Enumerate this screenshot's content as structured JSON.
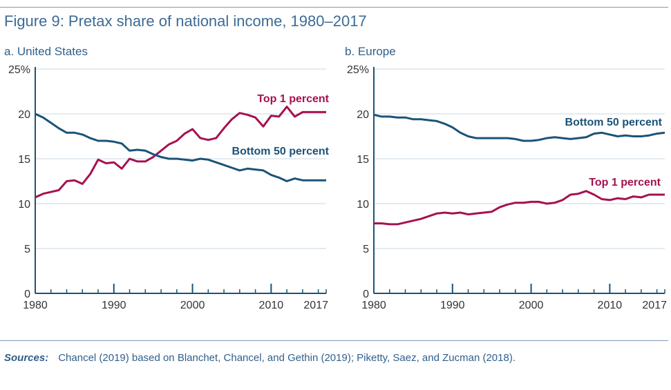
{
  "title": "Figure 9: Pretax share of national income, 1980–2017",
  "sources": {
    "label": "Sources:",
    "text": "Chancel (2019) based on Blanchet, Chancel, and Gethin (2019); Piketty, Saez, and Zucman (2018)."
  },
  "colors": {
    "top1": "#a6114f",
    "bottom50": "#1b5377",
    "axis": "#1b5377",
    "grid": "#c9d7e3"
  },
  "chart_data": [
    {
      "type": "line",
      "title": "a. United States",
      "x": [
        1980,
        1981,
        1982,
        1983,
        1984,
        1985,
        1986,
        1987,
        1988,
        1989,
        1990,
        1991,
        1992,
        1993,
        1994,
        1995,
        1996,
        1997,
        1998,
        1999,
        2000,
        2001,
        2002,
        2003,
        2004,
        2005,
        2006,
        2007,
        2008,
        2009,
        2010,
        2011,
        2012,
        2013,
        2014,
        2015,
        2016,
        2017
      ],
      "xlim": [
        1980,
        2017
      ],
      "ylim": [
        0,
        25
      ],
      "yticks": [
        0,
        5,
        10,
        15,
        20,
        25
      ],
      "ytick_labels": [
        "0",
        "5",
        "10",
        "15",
        "20",
        "25%"
      ],
      "xticks": [
        1980,
        1990,
        2000,
        2010,
        2017
      ],
      "grid": true,
      "series": [
        {
          "name": "Top 1 percent",
          "color": "#a6114f",
          "values": [
            10.7,
            11.1,
            11.3,
            11.5,
            12.5,
            12.6,
            12.2,
            13.3,
            14.9,
            14.5,
            14.6,
            13.9,
            15.0,
            14.7,
            14.7,
            15.2,
            15.9,
            16.6,
            17.0,
            17.8,
            18.3,
            17.3,
            17.1,
            17.3,
            18.4,
            19.4,
            20.1,
            19.9,
            19.6,
            18.6,
            19.8,
            19.7,
            20.8,
            19.7,
            20.2,
            20.2,
            20.2,
            20.2
          ]
        },
        {
          "name": "Bottom 50 percent",
          "color": "#1b5377",
          "values": [
            20.0,
            19.6,
            19.0,
            18.4,
            17.9,
            17.9,
            17.7,
            17.3,
            17.0,
            17.0,
            16.9,
            16.7,
            15.9,
            16.0,
            15.9,
            15.5,
            15.2,
            15.0,
            15.0,
            14.9,
            14.8,
            15.0,
            14.9,
            14.6,
            14.3,
            14.0,
            13.7,
            13.9,
            13.8,
            13.7,
            13.2,
            12.9,
            12.5,
            12.8,
            12.6,
            12.6,
            12.6,
            12.6
          ]
        }
      ]
    },
    {
      "type": "line",
      "title": "b. Europe",
      "x": [
        1980,
        1981,
        1982,
        1983,
        1984,
        1985,
        1986,
        1987,
        1988,
        1989,
        1990,
        1991,
        1992,
        1993,
        1994,
        1995,
        1996,
        1997,
        1998,
        1999,
        2000,
        2001,
        2002,
        2003,
        2004,
        2005,
        2006,
        2007,
        2008,
        2009,
        2010,
        2011,
        2012,
        2013,
        2014,
        2015,
        2016,
        2017
      ],
      "xlim": [
        1980,
        2017
      ],
      "ylim": [
        0,
        25
      ],
      "yticks": [
        0,
        5,
        10,
        15,
        20,
        25
      ],
      "ytick_labels": [
        "0",
        "5",
        "10",
        "15",
        "20",
        "25%"
      ],
      "xticks": [
        1980,
        1990,
        2000,
        2010,
        2017
      ],
      "grid": true,
      "series": [
        {
          "name": "Top 1 percent",
          "color": "#a6114f",
          "values": [
            7.8,
            7.8,
            7.7,
            7.7,
            7.9,
            8.1,
            8.3,
            8.6,
            8.9,
            9.0,
            8.9,
            9.0,
            8.8,
            8.9,
            9.0,
            9.1,
            9.6,
            9.9,
            10.1,
            10.1,
            10.2,
            10.2,
            10.0,
            10.1,
            10.4,
            11.0,
            11.1,
            11.4,
            11.0,
            10.5,
            10.4,
            10.6,
            10.5,
            10.8,
            10.7,
            11.0,
            11.0,
            11.0
          ]
        },
        {
          "name": "Bottom 50 percent",
          "color": "#1b5377",
          "values": [
            19.9,
            19.7,
            19.7,
            19.6,
            19.6,
            19.4,
            19.4,
            19.3,
            19.2,
            18.9,
            18.5,
            17.9,
            17.5,
            17.3,
            17.3,
            17.3,
            17.3,
            17.3,
            17.2,
            17.0,
            17.0,
            17.1,
            17.3,
            17.4,
            17.3,
            17.2,
            17.3,
            17.4,
            17.8,
            17.9,
            17.7,
            17.5,
            17.6,
            17.5,
            17.5,
            17.6,
            17.8,
            17.9
          ]
        }
      ]
    }
  ]
}
